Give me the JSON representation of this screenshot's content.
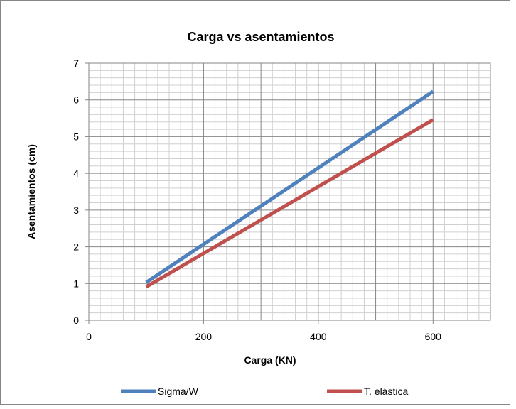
{
  "chart_data": {
    "type": "line",
    "title": "Carga vs asentamientos",
    "xlabel": "Carga (KN)",
    "ylabel": "Asentamientos  (cm)",
    "xlim": [
      0,
      700
    ],
    "ylim": [
      0,
      7
    ],
    "x_ticks": [
      "0",
      "200",
      "400",
      "600"
    ],
    "y_ticks": [
      "0",
      "1",
      "2",
      "3",
      "4",
      "5",
      "6",
      "7"
    ],
    "grid": true,
    "legend_position": "bottom",
    "series": [
      {
        "name": "Sigma/W",
        "color": "#4F81BD",
        "x": [
          100,
          600
        ],
        "y": [
          1.03,
          6.23
        ]
      },
      {
        "name": "T. elástica",
        "color": "#C0504D",
        "x": [
          100,
          600
        ],
        "y": [
          0.91,
          5.46
        ]
      }
    ]
  }
}
